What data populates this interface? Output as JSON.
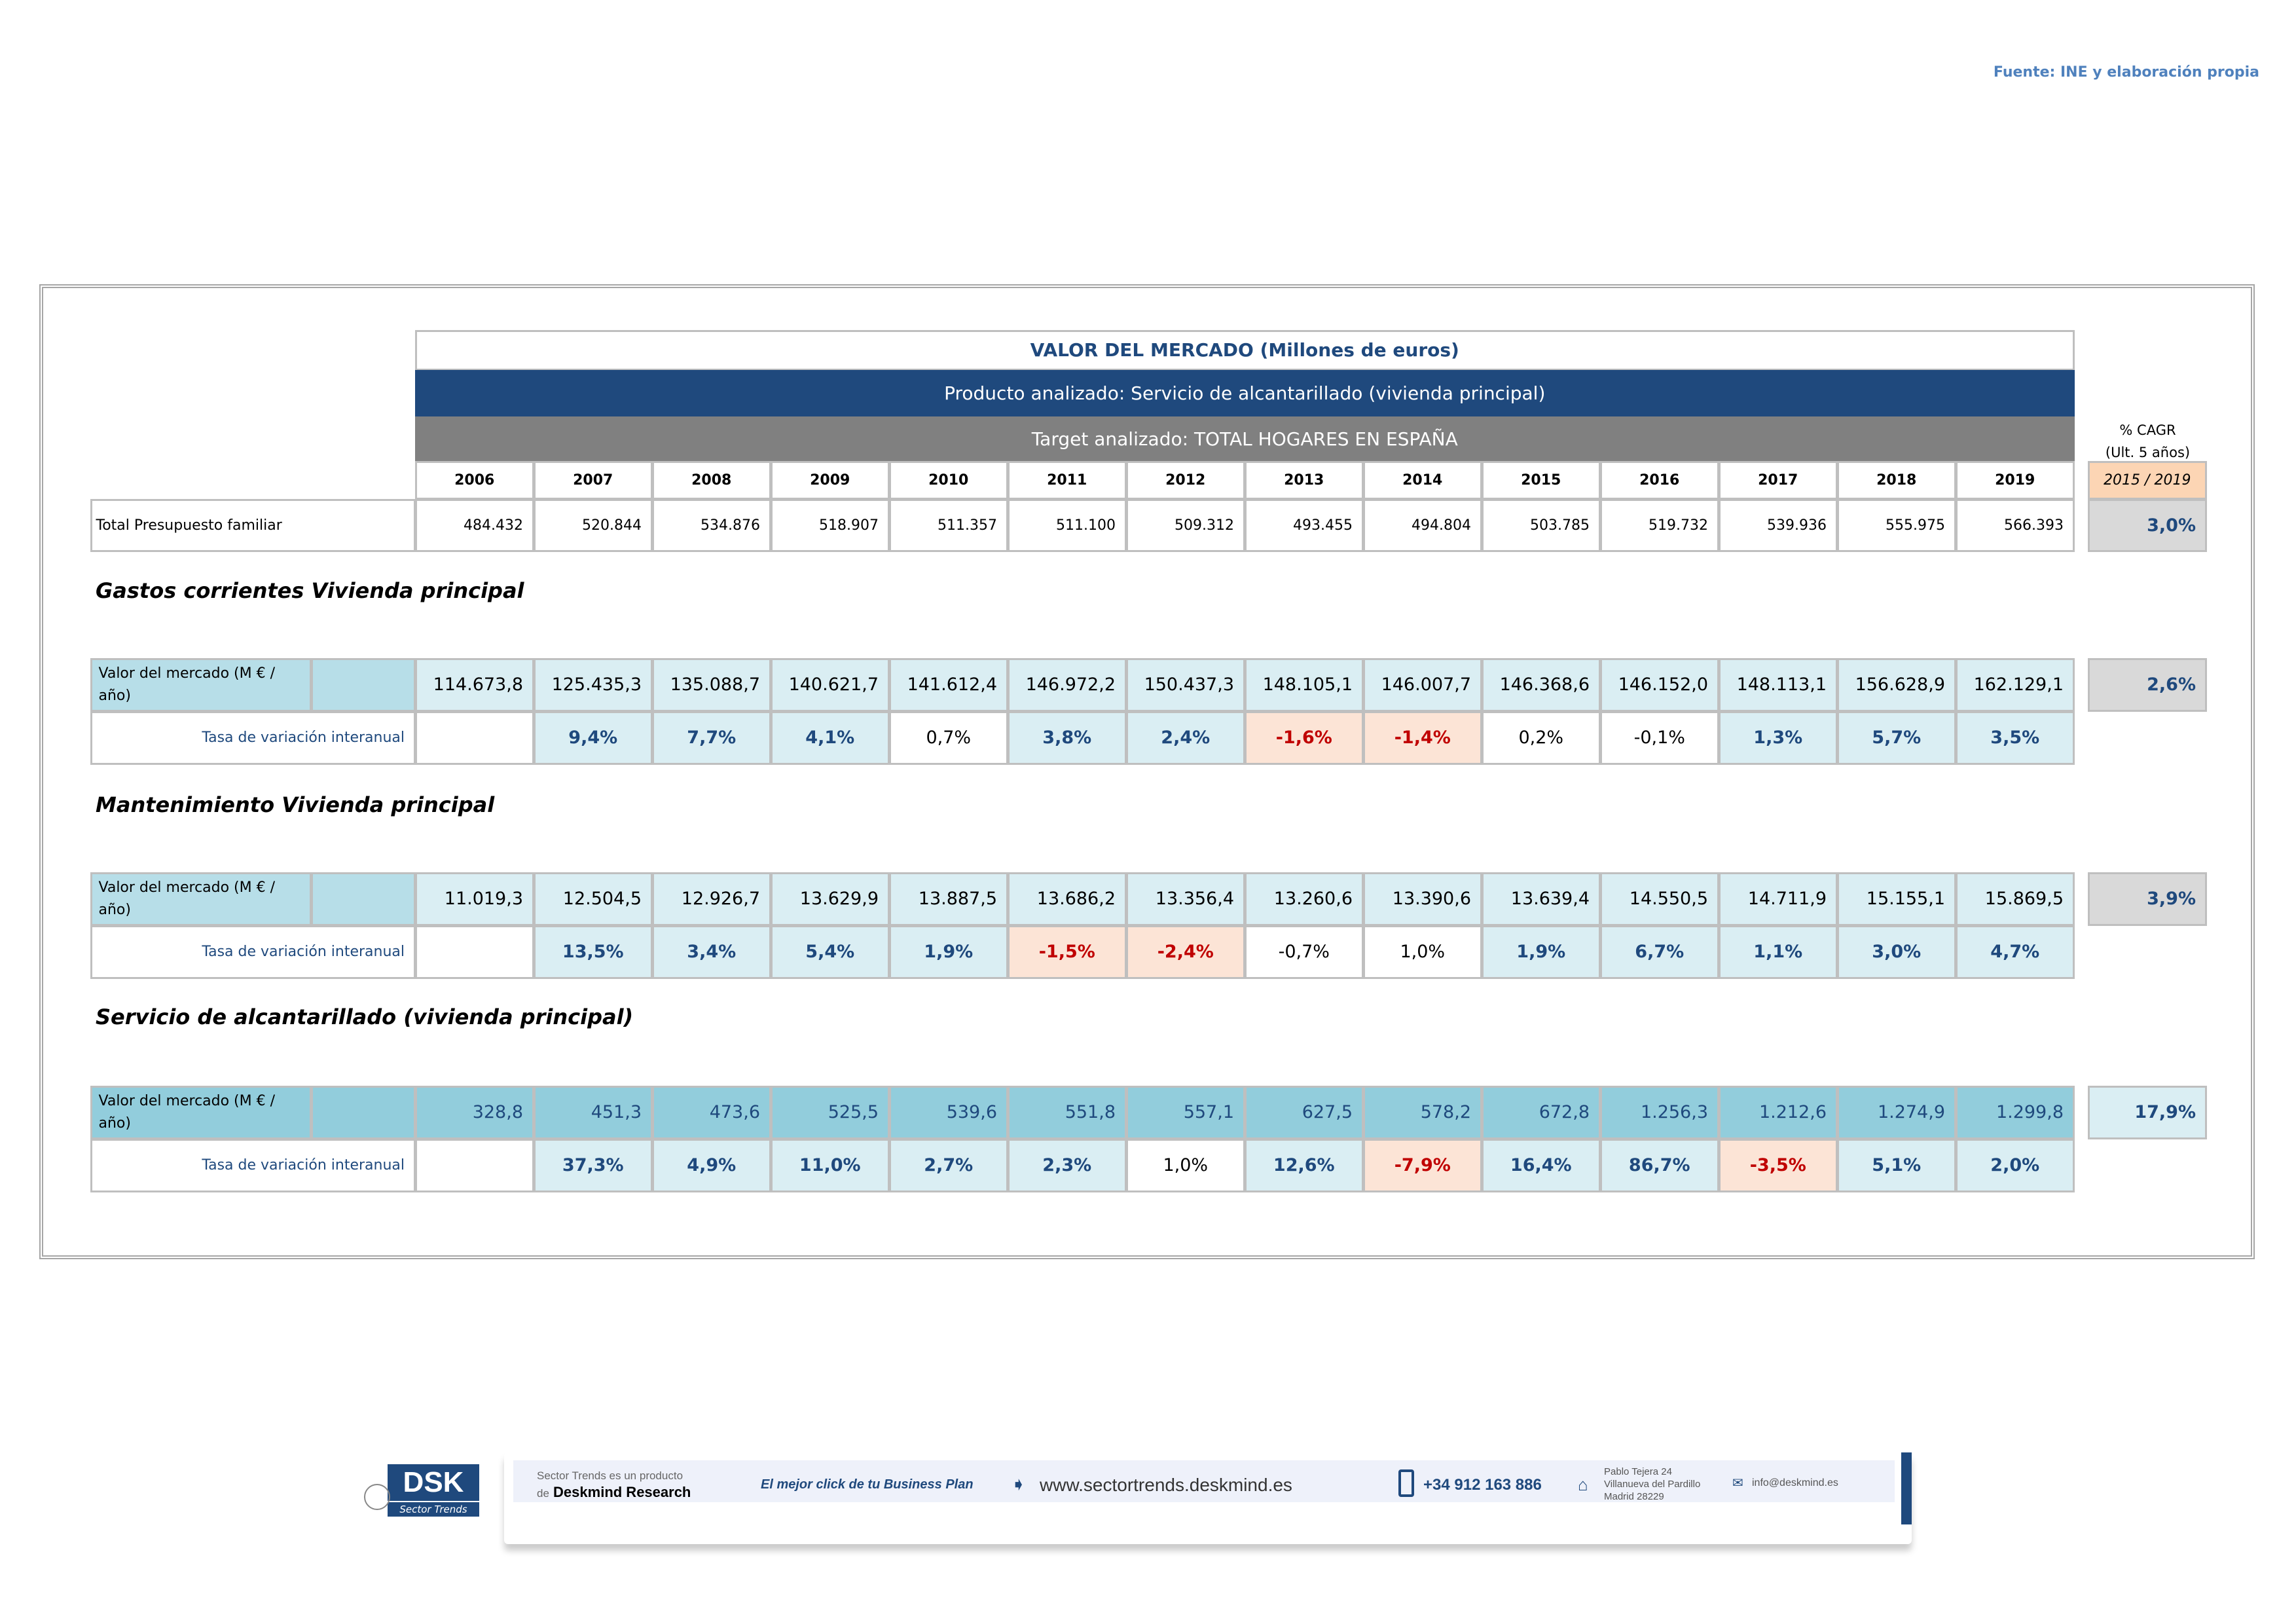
{
  "source": "Fuente: INE y elaboración propia",
  "header": {
    "title": "VALOR DEL MERCADO (Millones de euros)",
    "product": "Producto analizado: Servicio de alcantarillado (vivienda principal)",
    "target": "Target analizado: TOTAL HOGARES EN ESPAÑA",
    "cagr_label_1": "% CAGR",
    "cagr_label_2": "(Ult. 5 años)",
    "cagr_period": "2015 / 2019"
  },
  "colors": {
    "header_blue": "#1F497D",
    "header_gray": "#808080",
    "positive_bg": "#DAEEF3",
    "negative_bg": "#FCE4D6",
    "negative_text": "#C00000",
    "cagr_period_bg": "#FCD5B4",
    "cagr_bg": "#D9D9D9"
  },
  "years": [
    "2006",
    "2007",
    "2008",
    "2009",
    "2010",
    "2011",
    "2012",
    "2013",
    "2014",
    "2015",
    "2016",
    "2017",
    "2018",
    "2019"
  ],
  "total": {
    "label": "Total Presupuesto familiar",
    "values": [
      "484.432",
      "520.844",
      "534.876",
      "518.907",
      "511.357",
      "511.100",
      "509.312",
      "493.455",
      "494.804",
      "503.785",
      "519.732",
      "539.936",
      "555.975",
      "566.393"
    ],
    "cagr": "3,0%"
  },
  "sections": [
    {
      "title": "Gastos corrientes Vivienda principal",
      "value_label": "Valor del mercado (M € / año)",
      "rate_label": "Tasa de variación interanual",
      "values": [
        "114.673,8",
        "125.435,3",
        "135.088,7",
        "140.621,7",
        "141.612,4",
        "146.972,2",
        "150.437,3",
        "148.105,1",
        "146.007,7",
        "146.368,6",
        "146.152,0",
        "148.113,1",
        "156.628,9",
        "162.129,1"
      ],
      "rates": [
        {
          "v": "",
          "s": "plain"
        },
        {
          "v": "9,4%",
          "s": "pos"
        },
        {
          "v": "7,7%",
          "s": "pos"
        },
        {
          "v": "4,1%",
          "s": "pos"
        },
        {
          "v": "0,7%",
          "s": "plain"
        },
        {
          "v": "3,8%",
          "s": "pos"
        },
        {
          "v": "2,4%",
          "s": "pos"
        },
        {
          "v": "-1,6%",
          "s": "neg"
        },
        {
          "v": "-1,4%",
          "s": "neg"
        },
        {
          "v": "0,2%",
          "s": "plain"
        },
        {
          "v": "-0,1%",
          "s": "plain"
        },
        {
          "v": "1,3%",
          "s": "pos"
        },
        {
          "v": "5,7%",
          "s": "pos"
        },
        {
          "v": "3,5%",
          "s": "pos"
        }
      ],
      "cagr": "2,6%",
      "row_bg": "#DAEEF3",
      "label_bg": "#B7DEE8",
      "value_color": "#000000",
      "cagr_bg": "#D9D9D9"
    },
    {
      "title": "Mantenimiento Vivienda principal",
      "value_label": "Valor del mercado (M € / año)",
      "rate_label": "Tasa de variación interanual",
      "values": [
        "11.019,3",
        "12.504,5",
        "12.926,7",
        "13.629,9",
        "13.887,5",
        "13.686,2",
        "13.356,4",
        "13.260,6",
        "13.390,6",
        "13.639,4",
        "14.550,5",
        "14.711,9",
        "15.155,1",
        "15.869,5"
      ],
      "rates": [
        {
          "v": "",
          "s": "plain"
        },
        {
          "v": "13,5%",
          "s": "pos"
        },
        {
          "v": "3,4%",
          "s": "pos"
        },
        {
          "v": "5,4%",
          "s": "pos"
        },
        {
          "v": "1,9%",
          "s": "pos"
        },
        {
          "v": "-1,5%",
          "s": "neg"
        },
        {
          "v": "-2,4%",
          "s": "neg"
        },
        {
          "v": "-0,7%",
          "s": "plain"
        },
        {
          "v": "1,0%",
          "s": "plain"
        },
        {
          "v": "1,9%",
          "s": "pos"
        },
        {
          "v": "6,7%",
          "s": "pos"
        },
        {
          "v": "1,1%",
          "s": "pos"
        },
        {
          "v": "3,0%",
          "s": "pos"
        },
        {
          "v": "4,7%",
          "s": "pos"
        }
      ],
      "cagr": "3,9%",
      "row_bg": "#DAEEF3",
      "label_bg": "#B7DEE8",
      "value_color": "#000000",
      "cagr_bg": "#D9D9D9"
    },
    {
      "title": "Servicio de alcantarillado (vivienda principal)",
      "value_label": "Valor del mercado (M € / año)",
      "rate_label": "Tasa de variación interanual",
      "values": [
        "328,8",
        "451,3",
        "473,6",
        "525,5",
        "539,6",
        "551,8",
        "557,1",
        "627,5",
        "578,2",
        "672,8",
        "1.256,3",
        "1.212,6",
        "1.274,9",
        "1.299,8"
      ],
      "rates": [
        {
          "v": "",
          "s": "plain"
        },
        {
          "v": "37,3%",
          "s": "pos"
        },
        {
          "v": "4,9%",
          "s": "pos"
        },
        {
          "v": "11,0%",
          "s": "pos"
        },
        {
          "v": "2,7%",
          "s": "pos"
        },
        {
          "v": "2,3%",
          "s": "pos"
        },
        {
          "v": "1,0%",
          "s": "plain"
        },
        {
          "v": "12,6%",
          "s": "pos"
        },
        {
          "v": "-7,9%",
          "s": "neg"
        },
        {
          "v": "16,4%",
          "s": "pos"
        },
        {
          "v": "86,7%",
          "s": "pos"
        },
        {
          "v": "-3,5%",
          "s": "neg"
        },
        {
          "v": "5,1%",
          "s": "pos"
        },
        {
          "v": "2,0%",
          "s": "pos"
        }
      ],
      "cagr": "17,9%",
      "row_bg": "#92CDDC",
      "label_bg": "#92CDDC",
      "value_color": "#1F497D",
      "cagr_bg": "#DAEEF3"
    }
  ],
  "footer": {
    "logo": "DSK",
    "logo_sub": "Sector Trends",
    "product_line_1": "Sector Trends es un producto",
    "product_line_2_prefix": "de",
    "product_line_2_brand": "Deskmind Research",
    "slogan": "El mejor click de tu Business Plan",
    "website": "www.sectortrends.deskmind.es",
    "phone": "+34 912 163 886",
    "address_1": "Pablo Tejera 24",
    "address_2": "Villanueva del Pardillo",
    "address_3": "Madrid 28229",
    "email": "info@deskmind.es"
  }
}
